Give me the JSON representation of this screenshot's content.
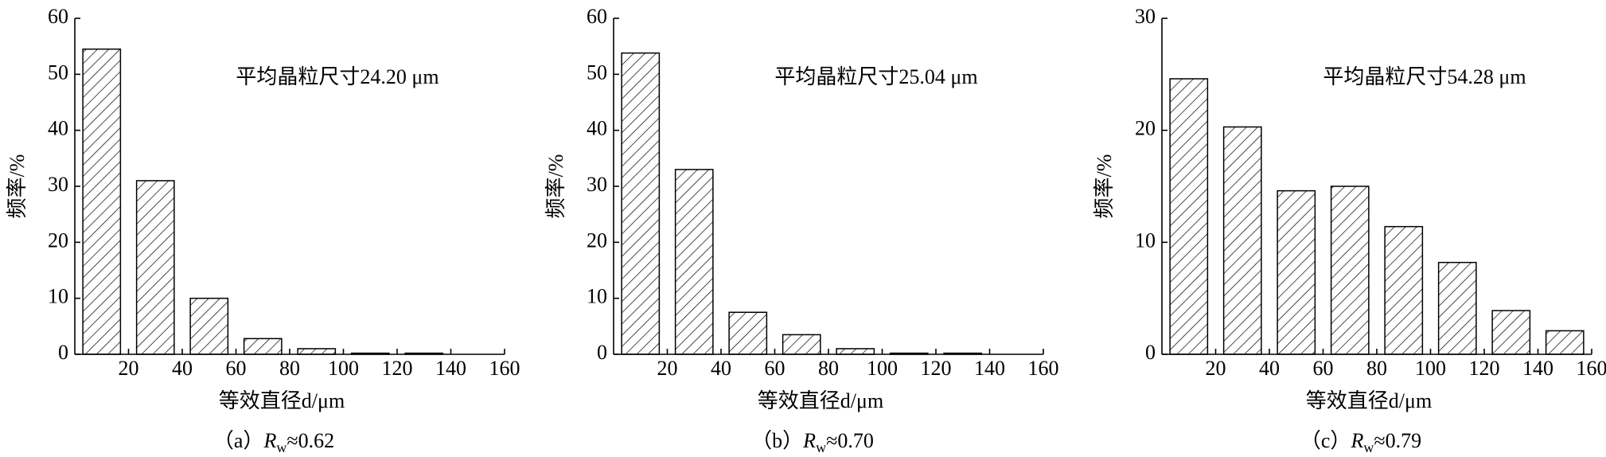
{
  "chart_data": [
    {
      "type": "histogram",
      "bins": [
        0,
        20,
        40,
        60,
        80,
        100,
        120,
        140,
        160
      ],
      "counts": [
        54.5,
        31,
        10,
        2.8,
        1,
        0.2,
        0.2,
        0
      ],
      "xlim": [
        0,
        160
      ],
      "xticks": [
        20,
        40,
        60,
        80,
        100,
        120,
        140,
        160
      ],
      "ylim": [
        0,
        60
      ],
      "yticks": [
        0,
        10,
        20,
        30,
        40,
        50,
        60
      ],
      "annotation": "平均晶粒尺寸24.20 μm",
      "x_label": "等效直径d/μm",
      "y_label": "频率/%",
      "caption": {
        "label": "（a）",
        "symbol": "R",
        "subscript": "w",
        "value_text": "≈0.62"
      }
    },
    {
      "type": "histogram",
      "bins": [
        0,
        20,
        40,
        60,
        80,
        100,
        120,
        140,
        160
      ],
      "counts": [
        53.8,
        33,
        7.5,
        3.5,
        1,
        0.2,
        0.2,
        0
      ],
      "xlim": [
        0,
        160
      ],
      "xticks": [
        20,
        40,
        60,
        80,
        100,
        120,
        140,
        160
      ],
      "ylim": [
        0,
        60
      ],
      "yticks": [
        0,
        10,
        20,
        30,
        40,
        50,
        60
      ],
      "annotation": "平均晶粒尺寸25.04 μm",
      "x_label": "等效直径d/μm",
      "y_label": "频率/%",
      "caption": {
        "label": "（b）",
        "symbol": "R",
        "subscript": "w",
        "value_text": "≈0.70"
      }
    },
    {
      "type": "histogram",
      "bins": [
        0,
        20,
        40,
        60,
        80,
        100,
        120,
        140,
        160
      ],
      "counts": [
        24.6,
        20.3,
        14.6,
        15,
        11.4,
        8.2,
        3.9,
        2.1
      ],
      "xlim": [
        0,
        160
      ],
      "xticks": [
        20,
        40,
        60,
        80,
        100,
        120,
        140,
        160
      ],
      "ylim": [
        0,
        30
      ],
      "yticks": [
        0,
        10,
        20,
        30
      ],
      "annotation": "平均晶粒尺寸54.28 μm",
      "x_label": "等效直径d/μm",
      "y_label": "频率/%",
      "caption": {
        "label": "（c）",
        "symbol": "R",
        "subscript": "w",
        "value_text": "≈0.79"
      }
    }
  ]
}
